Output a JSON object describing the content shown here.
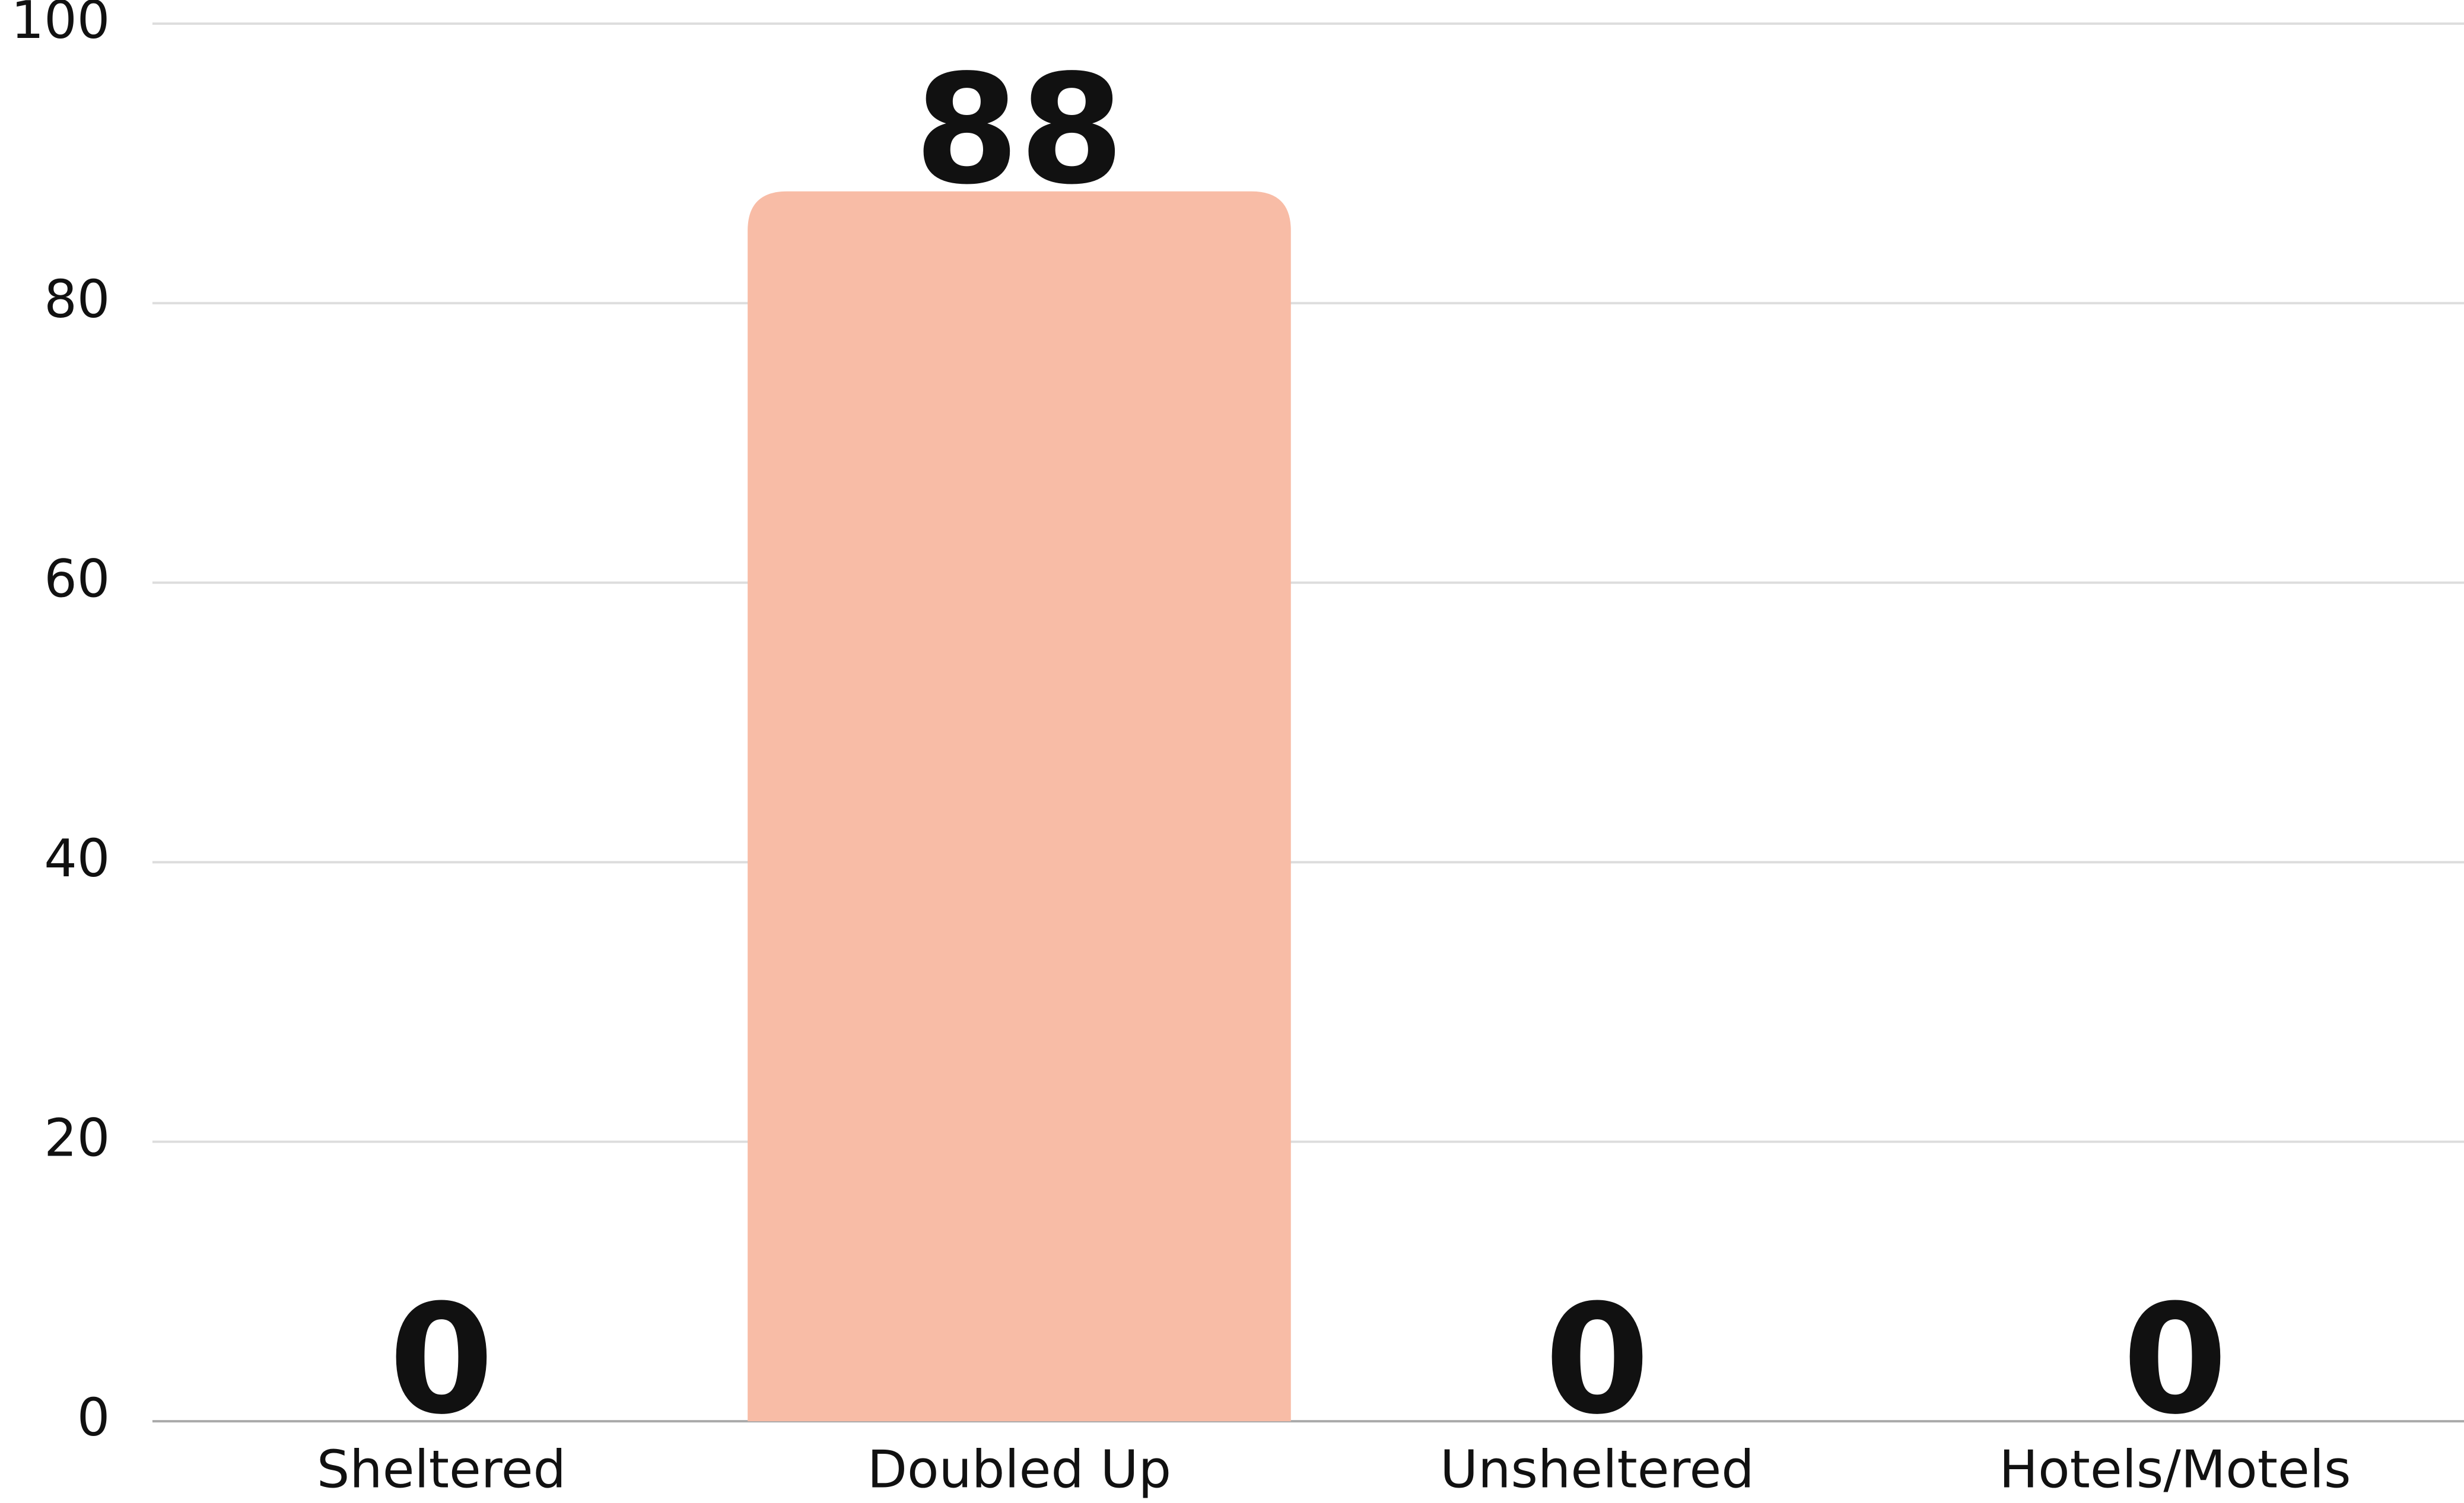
{
  "chart_data": {
    "type": "bar",
    "categories": [
      "Sheltered",
      "Doubled Up",
      "Unsheltered",
      "Hotels/Motels"
    ],
    "values": [
      0,
      88,
      0,
      0
    ],
    "color": "#f8bca6",
    "ylim": [
      0,
      100
    ],
    "yticks": [
      0,
      20,
      40,
      60,
      80,
      100
    ],
    "grid": true
  }
}
